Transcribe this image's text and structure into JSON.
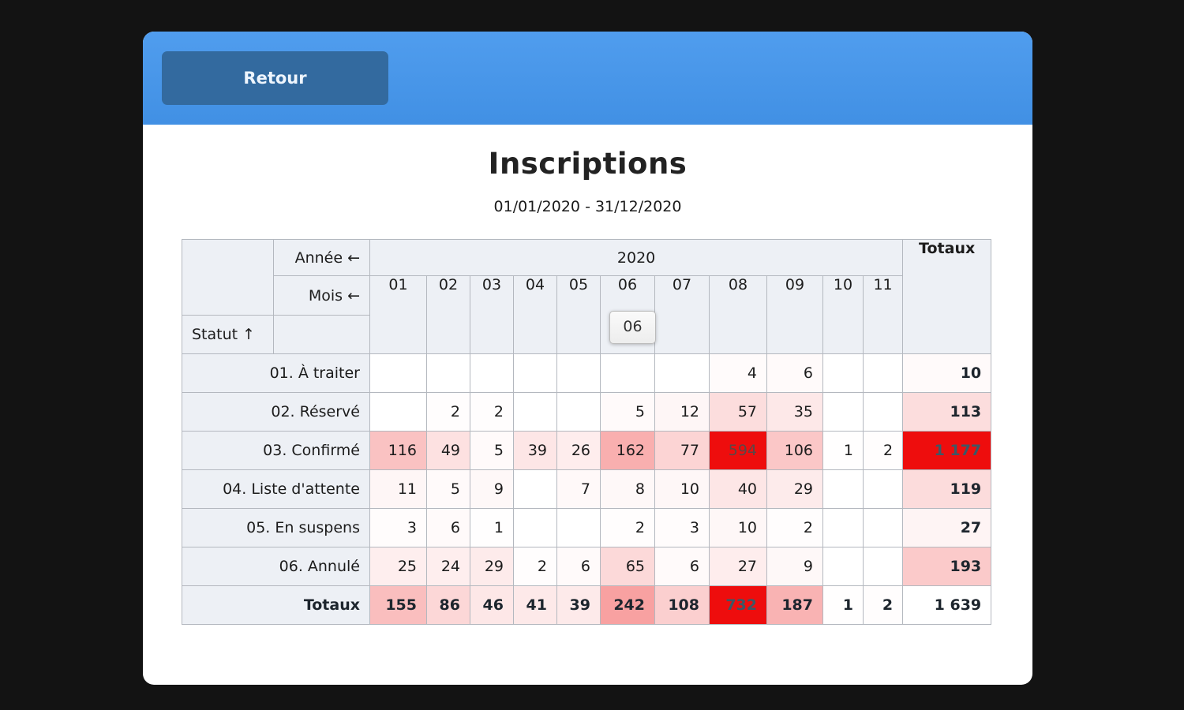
{
  "colors": {
    "header_blue_top": "#509dee",
    "header_blue_bottom": "#4190e4",
    "back_button_blue": "#336a9f",
    "heat_red": "#ee0d0d",
    "header_cell_bg": "#edf0f5",
    "border": "#b4b8bf"
  },
  "toolbar": {
    "back_label": "Retour"
  },
  "page": {
    "title": "Inscriptions",
    "subtitle": "01/01/2020 - 31/12/2020"
  },
  "tooltip": {
    "text": "06"
  },
  "table": {
    "year_sort_header": "Année ←",
    "month_sort_header": "Mois ←",
    "status_sort_header": "Statut ↑",
    "year_value": "2020",
    "totals_header": "Totaux",
    "months": [
      "01",
      "02",
      "03",
      "04",
      "05",
      "06",
      "07",
      "08",
      "09",
      "10",
      "11"
    ],
    "rows": [
      {
        "label": "01. À traiter",
        "values": [
          null,
          null,
          null,
          null,
          null,
          null,
          null,
          4,
          6,
          null,
          null
        ],
        "total": 10
      },
      {
        "label": "02. Réservé",
        "values": [
          null,
          2,
          2,
          null,
          null,
          5,
          12,
          57,
          35,
          null,
          null
        ],
        "total": 113
      },
      {
        "label": "03. Confirmé",
        "values": [
          116,
          49,
          5,
          39,
          26,
          162,
          77,
          594,
          106,
          1,
          2
        ],
        "total": 1177
      },
      {
        "label": "04. Liste d'attente",
        "values": [
          11,
          5,
          9,
          null,
          7,
          8,
          10,
          40,
          29,
          null,
          null
        ],
        "total": 119
      },
      {
        "label": "05. En suspens",
        "values": [
          3,
          6,
          1,
          null,
          null,
          2,
          3,
          10,
          2,
          null,
          null
        ],
        "total": 27
      },
      {
        "label": "06. Annulé",
        "values": [
          25,
          24,
          29,
          2,
          6,
          65,
          6,
          27,
          9,
          null,
          null
        ],
        "total": 193
      }
    ],
    "totals_row": {
      "label": "Totaux",
      "values": [
        155,
        86,
        46,
        41,
        39,
        242,
        108,
        732,
        187,
        1,
        2
      ],
      "grand_total": 1639
    },
    "heatmap": {
      "max_cell": 594,
      "max_total_row": 732,
      "max_total_col": 1177
    }
  }
}
